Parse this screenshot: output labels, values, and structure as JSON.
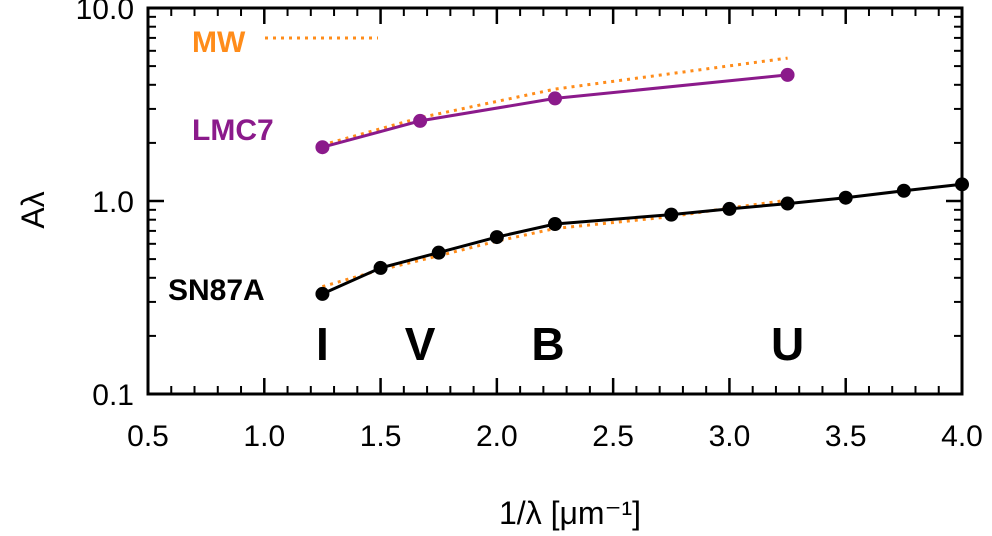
{
  "chart_data": {
    "type": "line",
    "title": "",
    "xlabel": "1/λ [μm⁻¹]",
    "ylabel": "Aλ",
    "xlim": [
      0.5,
      4.0
    ],
    "ylim": [
      0.1,
      10.0
    ],
    "yscale": "log",
    "grid": false,
    "x_ticks": [
      "0.5",
      "1.0",
      "1.5",
      "2.0",
      "2.5",
      "3.0",
      "3.5",
      "4.0"
    ],
    "y_ticks": [
      "0.1",
      "1.0",
      "10.0"
    ],
    "bands": [
      {
        "label": "I",
        "x": 1.25
      },
      {
        "label": "V",
        "x": 1.67
      },
      {
        "label": "B",
        "x": 2.22
      },
      {
        "label": "U",
        "x": 3.25
      }
    ],
    "series": [
      {
        "name": "SN87A",
        "color": "#000000",
        "style": "solid-markers",
        "x": [
          1.25,
          1.5,
          1.75,
          2.0,
          2.25,
          2.75,
          3.0,
          3.25,
          3.5,
          3.75,
          4.0
        ],
        "y": [
          0.33,
          0.45,
          0.54,
          0.65,
          0.76,
          0.85,
          0.91,
          0.97,
          1.04,
          1.13,
          1.22
        ]
      },
      {
        "name": "MW",
        "color": "#ff8c1a",
        "style": "dotted",
        "x": [
          1.25,
          1.5,
          1.75,
          2.0,
          2.25,
          2.75,
          3.0,
          3.25
        ],
        "y": [
          0.36,
          0.44,
          0.52,
          0.62,
          0.72,
          0.83,
          0.92,
          1.01
        ]
      },
      {
        "name": "LMC7",
        "color": "#8b1a8b",
        "style": "solid-markers",
        "x": [
          1.25,
          1.67,
          2.25,
          3.25
        ],
        "y": [
          1.9,
          2.6,
          3.4,
          4.5
        ]
      },
      {
        "name": "MW",
        "color": "#ff8c1a",
        "style": "dotted",
        "x": [
          1.25,
          1.67,
          2.25,
          3.25
        ],
        "y": [
          1.95,
          2.7,
          3.8,
          5.5
        ]
      }
    ],
    "legend": [
      {
        "name": "MW",
        "color": "#ff8c1a"
      },
      {
        "name": "LMC7",
        "color": "#8b1a8b"
      },
      {
        "name": "SN87A",
        "color": "#000000"
      }
    ],
    "legend_position": "top-left"
  }
}
